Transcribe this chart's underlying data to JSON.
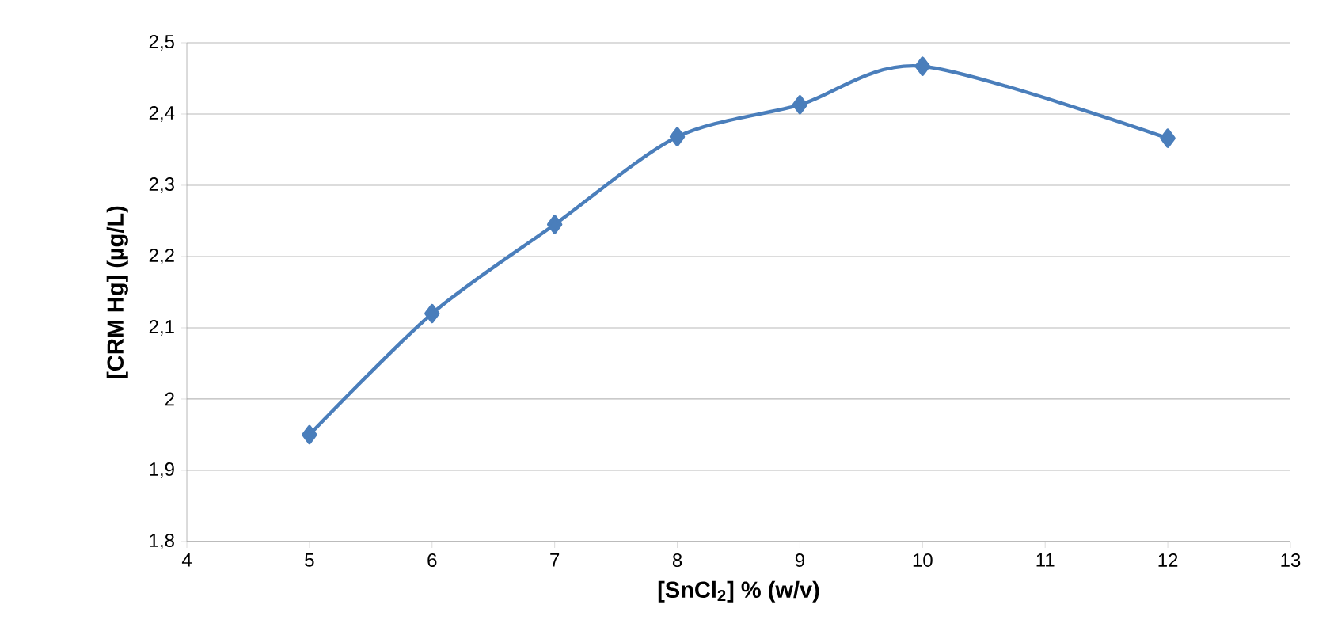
{
  "chart_data": {
    "type": "line",
    "xlabel": "[SnCl$_{2}$] % (w/v)",
    "ylabel": "[CRM Hg] (µg/L)",
    "x": [
      5,
      6,
      7,
      8,
      9,
      10,
      12
    ],
    "series": [
      {
        "color": "#4a7ebb",
        "values": [
          1.95,
          2.12,
          2.245,
          2.368,
          2.413,
          2.467,
          2.366
        ]
      }
    ],
    "xlim": [
      4,
      13
    ],
    "xticks": [
      4,
      5,
      6,
      7,
      8,
      9,
      10,
      11,
      12,
      13
    ],
    "ylim": [
      1.8,
      2.5
    ],
    "yticks": [
      {
        "value": 1.8,
        "label": "1,8"
      },
      {
        "value": 1.9,
        "label": "1,9"
      },
      2,
      {
        "value": 2.1,
        "label": "2,1"
      },
      {
        "value": 2.2,
        "label": "2,2"
      },
      {
        "value": 2.3,
        "label": "2,3"
      },
      {
        "value": 2.4,
        "label": "2,4"
      },
      {
        "value": 2.5,
        "label": "2,5"
      }
    ],
    "grid": "y",
    "marker": "diamond",
    "line_style": "solid"
  }
}
